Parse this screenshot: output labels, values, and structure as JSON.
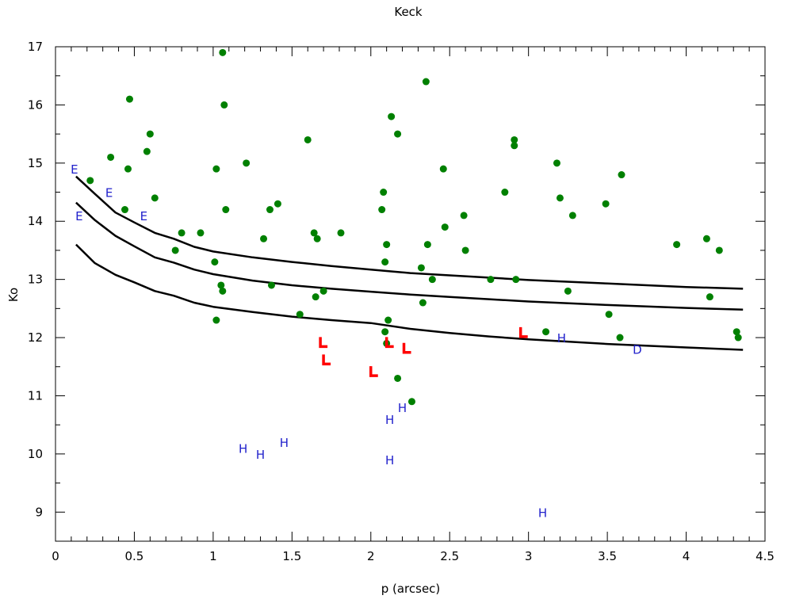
{
  "chart_data": {
    "type": "scatter",
    "title": "Keck",
    "xlabel": "p (arcsec)",
    "ylabel": "Ko",
    "xlim": [
      0,
      4.5
    ],
    "ylim": [
      8.5,
      17
    ],
    "xticks": [
      0,
      0.5,
      1,
      1.5,
      2,
      2.5,
      3,
      3.5,
      4,
      4.5
    ],
    "xtick_labels": [
      "0",
      "0.5",
      "1",
      "1.5",
      "2",
      "2.5",
      "3",
      "3.5",
      "4",
      "4.5"
    ],
    "yticks": [
      9,
      10,
      11,
      12,
      13,
      14,
      15,
      16,
      17
    ],
    "ytick_labels": [
      "9",
      "10",
      "11",
      "12",
      "13",
      "14",
      "15",
      "16",
      "17"
    ],
    "grid": false,
    "colors": {
      "points": "#008000",
      "markers_L": "#ff0000",
      "letters": "#2222cc",
      "curves": "#000000"
    },
    "points": [
      [
        0.22,
        14.7
      ],
      [
        0.35,
        15.1
      ],
      [
        0.44,
        14.2
      ],
      [
        0.46,
        14.9
      ],
      [
        0.47,
        16.1
      ],
      [
        0.58,
        15.2
      ],
      [
        0.6,
        15.5
      ],
      [
        0.63,
        14.4
      ],
      [
        0.76,
        13.5
      ],
      [
        0.8,
        13.8
      ],
      [
        0.92,
        13.8
      ],
      [
        1.01,
        13.3
      ],
      [
        1.02,
        14.9
      ],
      [
        1.02,
        12.3
      ],
      [
        1.05,
        12.9
      ],
      [
        1.06,
        12.8
      ],
      [
        1.06,
        16.9
      ],
      [
        1.07,
        16.0
      ],
      [
        1.08,
        14.2
      ],
      [
        1.21,
        15.0
      ],
      [
        1.32,
        13.7
      ],
      [
        1.36,
        14.2
      ],
      [
        1.37,
        12.9
      ],
      [
        1.41,
        14.3
      ],
      [
        1.55,
        12.4
      ],
      [
        1.6,
        15.4
      ],
      [
        1.64,
        13.8
      ],
      [
        1.65,
        12.7
      ],
      [
        1.66,
        13.7
      ],
      [
        1.7,
        12.8
      ],
      [
        1.81,
        13.8
      ],
      [
        2.07,
        14.2
      ],
      [
        2.08,
        14.5
      ],
      [
        2.09,
        13.3
      ],
      [
        2.09,
        12.1
      ],
      [
        2.1,
        13.6
      ],
      [
        2.1,
        11.9
      ],
      [
        2.11,
        12.3
      ],
      [
        2.13,
        15.8
      ],
      [
        2.17,
        15.5
      ],
      [
        2.17,
        11.3
      ],
      [
        2.26,
        10.9
      ],
      [
        2.32,
        13.2
      ],
      [
        2.33,
        12.6
      ],
      [
        2.35,
        16.4
      ],
      [
        2.36,
        13.6
      ],
      [
        2.39,
        13.0
      ],
      [
        2.46,
        14.9
      ],
      [
        2.47,
        13.9
      ],
      [
        2.59,
        14.1
      ],
      [
        2.6,
        13.5
      ],
      [
        2.76,
        13.0
      ],
      [
        2.85,
        14.5
      ],
      [
        2.91,
        15.4
      ],
      [
        2.91,
        15.3
      ],
      [
        2.92,
        13.0
      ],
      [
        3.11,
        12.1
      ],
      [
        3.18,
        15.0
      ],
      [
        3.2,
        14.4
      ],
      [
        3.25,
        12.8
      ],
      [
        3.28,
        14.1
      ],
      [
        3.49,
        14.3
      ],
      [
        3.51,
        12.4
      ],
      [
        3.58,
        12.0
      ],
      [
        3.59,
        14.8
      ],
      [
        3.94,
        13.6
      ],
      [
        4.13,
        13.7
      ],
      [
        4.15,
        12.7
      ],
      [
        4.21,
        13.5
      ],
      [
        4.32,
        12.1
      ],
      [
        4.33,
        12.0
      ]
    ],
    "L_markers": [
      [
        1.7,
        11.9
      ],
      [
        1.72,
        11.6
      ],
      [
        2.02,
        11.4
      ],
      [
        2.12,
        11.9
      ],
      [
        2.23,
        11.8
      ],
      [
        2.97,
        12.07
      ]
    ],
    "letters": [
      {
        "text": "E",
        "x": 0.12,
        "y": 14.9
      },
      {
        "text": "E",
        "x": 0.34,
        "y": 14.5
      },
      {
        "text": "E",
        "x": 0.15,
        "y": 14.1
      },
      {
        "text": "E",
        "x": 0.56,
        "y": 14.1
      },
      {
        "text": "H",
        "x": 1.19,
        "y": 10.1
      },
      {
        "text": "H",
        "x": 1.3,
        "y": 10.0
      },
      {
        "text": "H",
        "x": 1.45,
        "y": 10.2
      },
      {
        "text": "H",
        "x": 2.12,
        "y": 10.6
      },
      {
        "text": "H",
        "x": 2.2,
        "y": 10.8
      },
      {
        "text": "H",
        "x": 2.12,
        "y": 9.9
      },
      {
        "text": "H",
        "x": 3.21,
        "y": 12.0
      },
      {
        "text": "H",
        "x": 3.09,
        "y": 9.0
      },
      {
        "text": "D",
        "x": 3.69,
        "y": 11.8
      }
    ],
    "curves": [
      {
        "x": [
          0.13,
          0.25,
          0.38,
          0.5,
          0.63,
          0.75,
          0.88,
          1.0,
          1.25,
          1.5,
          1.75,
          2.0,
          2.25,
          2.5,
          2.75,
          3.0,
          3.5,
          4.0,
          4.36
        ],
        "y": [
          14.77,
          14.47,
          14.15,
          13.98,
          13.8,
          13.7,
          13.56,
          13.48,
          13.38,
          13.3,
          13.23,
          13.17,
          13.11,
          13.07,
          13.03,
          12.99,
          12.93,
          12.87,
          12.84
        ]
      },
      {
        "x": [
          0.13,
          0.25,
          0.38,
          0.5,
          0.63,
          0.75,
          0.88,
          1.0,
          1.25,
          1.5,
          1.75,
          2.0,
          2.25,
          2.5,
          2.75,
          3.0,
          3.5,
          4.0,
          4.36
        ],
        "y": [
          14.32,
          14.02,
          13.75,
          13.57,
          13.38,
          13.29,
          13.17,
          13.09,
          12.98,
          12.9,
          12.84,
          12.79,
          12.74,
          12.7,
          12.66,
          12.62,
          12.56,
          12.51,
          12.48
        ]
      },
      {
        "x": [
          0.13,
          0.25,
          0.38,
          0.5,
          0.63,
          0.75,
          0.88,
          1.0,
          1.25,
          1.5,
          1.75,
          2.0,
          2.25,
          2.5,
          2.75,
          3.0,
          3.5,
          4.0,
          4.36
        ],
        "y": [
          13.6,
          13.28,
          13.08,
          12.95,
          12.8,
          12.72,
          12.6,
          12.53,
          12.44,
          12.36,
          12.3,
          12.25,
          12.15,
          12.08,
          12.02,
          11.97,
          11.89,
          11.83,
          11.79
        ]
      }
    ]
  }
}
